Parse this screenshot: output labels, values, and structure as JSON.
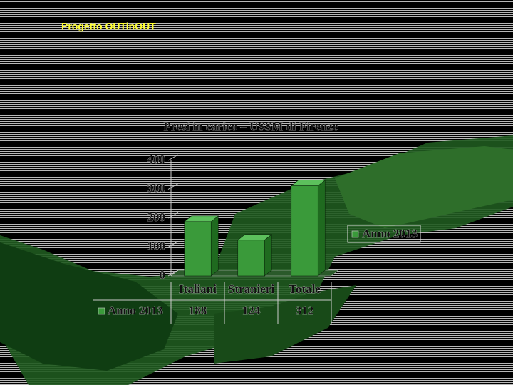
{
  "header": {
    "project": "Progetto OUTinOUT"
  },
  "chart_data": {
    "type": "bar3d",
    "title": "Presi in carico – USSM di Firenze",
    "categories": [
      "Italiani",
      "Stranieri",
      "Totale"
    ],
    "series": [
      {
        "name": "Anno 2013",
        "color": "#3a9a3a",
        "values": [
          188,
          124,
          312
        ]
      }
    ],
    "ylim": [
      0,
      400
    ],
    "yticks": [
      0,
      100,
      200,
      300,
      400
    ],
    "grid": false,
    "legend": "right",
    "data_table": true
  }
}
